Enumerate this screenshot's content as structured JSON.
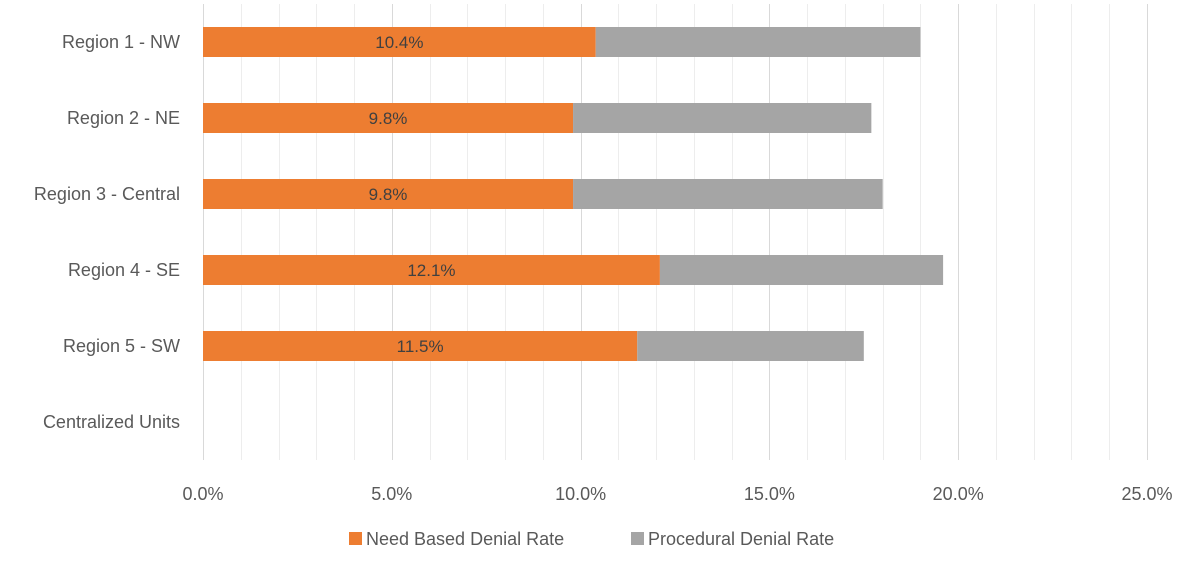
{
  "chart_data": {
    "type": "bar",
    "orientation": "horizontal",
    "stacked": true,
    "categories": [
      "Region 1 - NW",
      "Region 2 - NE",
      "Region 3 - Central",
      "Region 4 - SE",
      "Region 5 - SW",
      "Centralized Units"
    ],
    "series": [
      {
        "name": "Need Based Denial Rate",
        "color": "#ED7D31",
        "values": [
          10.4,
          9.8,
          9.8,
          12.1,
          11.5,
          0
        ],
        "data_labels": [
          "10.4%",
          "9.8%",
          "9.8%",
          "12.1%",
          "11.5%",
          ""
        ]
      },
      {
        "name": "Procedural Denial Rate",
        "color": "#A5A5A5",
        "values": [
          8.6,
          7.9,
          8.2,
          7.5,
          6.0,
          0
        ],
        "data_labels": [
          "",
          "",
          "",
          "",
          "",
          ""
        ]
      }
    ],
    "xlim": [
      0,
      25
    ],
    "x_ticks": [
      0,
      5,
      10,
      15,
      20,
      25
    ],
    "x_tick_labels": [
      "0.0%",
      "5.0%",
      "10.0%",
      "15.0%",
      "20.0%",
      "25.0%"
    ],
    "minor_gridlines_every": 1,
    "grid": true,
    "legend_position": "bottom",
    "title": "",
    "xlabel": "",
    "ylabel": ""
  }
}
